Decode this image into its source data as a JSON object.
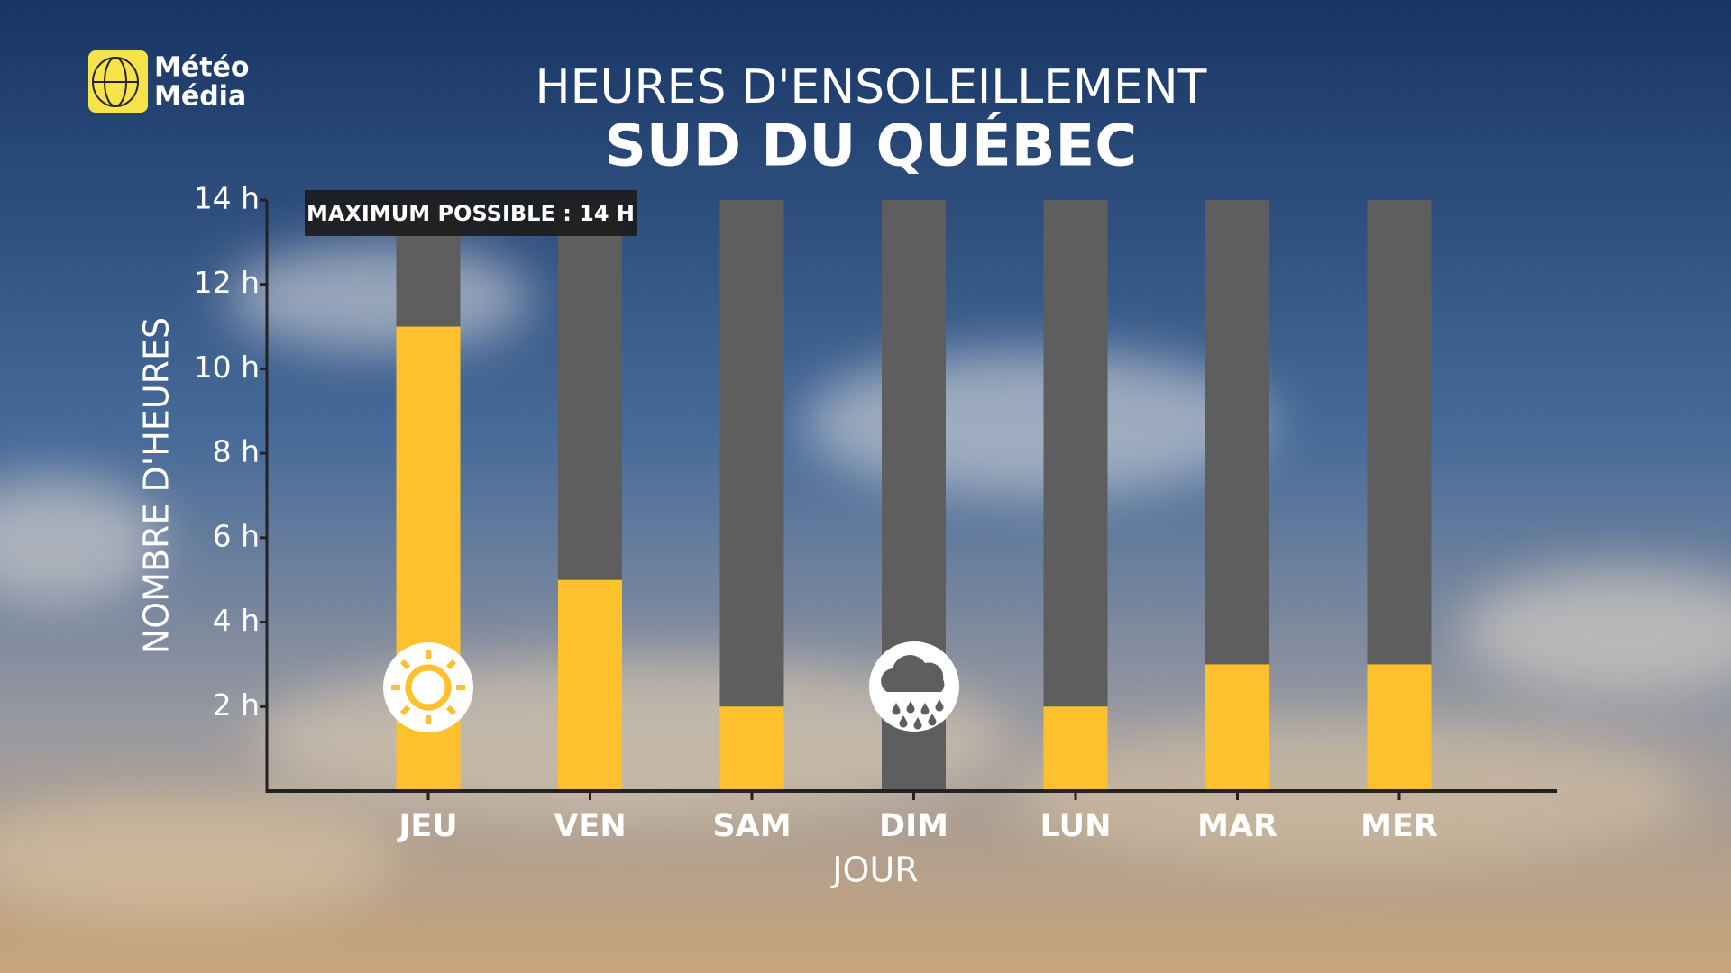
{
  "logo": {
    "line1": "Météo",
    "line2": "Média"
  },
  "chart_data": {
    "type": "bar",
    "title": "HEURES D'ENSOLEILLEMENT",
    "subtitle": "SUD DU QUÉBEC",
    "x_label": "JOUR",
    "y_label": "NOMBRE D'HEURES",
    "categories": [
      "JEU",
      "VEN",
      "SAM",
      "DIM",
      "LUN",
      "MAR",
      "MER"
    ],
    "values": [
      11,
      5,
      2,
      0,
      2,
      3,
      3
    ],
    "color": "#fdc12e",
    "max_possible": {
      "value": 14,
      "label": "MAXIMUM POSSIBLE : 14 H"
    },
    "max_color": "#5e5e5e",
    "ylim": [
      0,
      14
    ],
    "yticks": [
      {
        "value": 2,
        "label": "2 h"
      },
      {
        "value": 4,
        "label": "4 h"
      },
      {
        "value": 6,
        "label": "6 h"
      },
      {
        "value": 8,
        "label": "8 h"
      },
      {
        "value": 10,
        "label": "10 h"
      },
      {
        "value": 12,
        "label": "12 h"
      },
      {
        "value": 14,
        "label": "14 h"
      }
    ]
  }
}
